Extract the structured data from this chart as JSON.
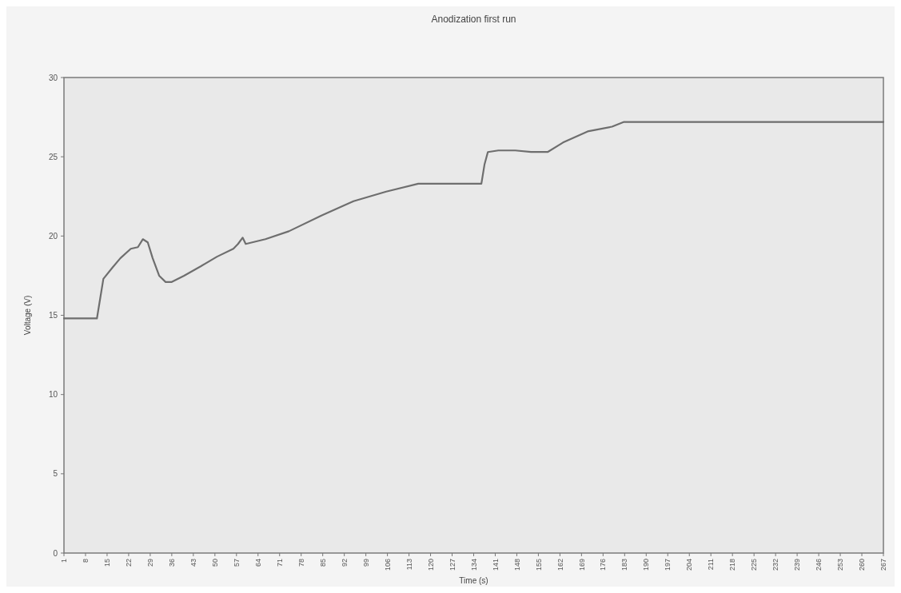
{
  "chart_data": {
    "type": "line",
    "title": "Anodization first run",
    "xlabel": "Time (s)",
    "ylabel": "Voltage (V)",
    "x": [
      1,
      11.7,
      13.8,
      16.7,
      19.3,
      22.7,
      25,
      26.6,
      28.2,
      29.8,
      31.9,
      34,
      36,
      40,
      45.5,
      50.7,
      56,
      57.5,
      59,
      60,
      66.4,
      74,
      84.7,
      95,
      105.6,
      116,
      126.5,
      136.5,
      137.5,
      138.6,
      142,
      147.5,
      152.6,
      158,
      163,
      171,
      178.9,
      182.8,
      267
    ],
    "series": [
      {
        "color": "#6e6e6e",
        "values": [
          14.8,
          14.8,
          17.3,
          18.0,
          18.6,
          19.2,
          19.3,
          19.8,
          19.6,
          18.6,
          17.5,
          17.1,
          17.1,
          17.5,
          18.1,
          18.7,
          19.2,
          19.5,
          19.9,
          19.5,
          19.8,
          20.3,
          21.3,
          22.2,
          22.8,
          23.3,
          23.3,
          23.3,
          24.5,
          25.3,
          25.4,
          25.4,
          25.3,
          25.3,
          25.9,
          26.6,
          26.9,
          27.2,
          27.2
        ]
      }
    ],
    "xlim": [
      1,
      267
    ],
    "xticks": [
      1,
      8,
      15,
      22,
      29,
      36,
      43,
      50,
      57,
      64,
      71,
      78,
      85,
      92,
      99,
      106,
      113,
      120,
      127,
      134,
      141,
      148,
      155,
      162,
      169,
      176,
      183,
      190,
      197,
      204,
      211,
      218,
      225,
      232,
      239,
      246,
      253,
      260,
      267
    ],
    "ylim": [
      0,
      30
    ],
    "yticks": [
      0,
      5,
      10,
      15,
      20,
      25,
      30
    ],
    "grid": false,
    "marker": "none",
    "line_style": "solid"
  }
}
